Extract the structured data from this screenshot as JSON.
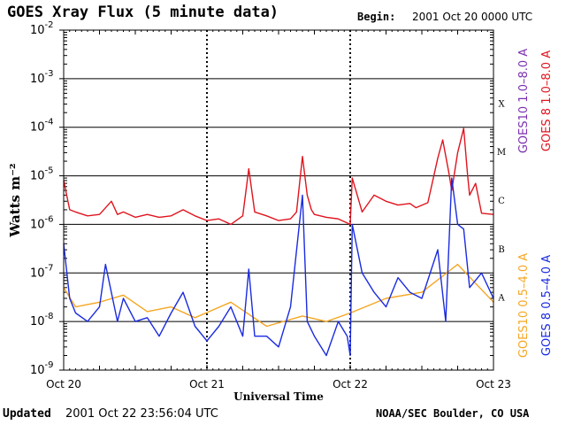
{
  "header": {
    "title": "GOES Xray Flux (5 minute data)",
    "begin_label": "Begin:",
    "begin_value": "2001 Oct 20 0000 UTC"
  },
  "footer": {
    "updated_label": "Updated",
    "updated_value": "2001 Oct 22 23:56:04 UTC",
    "credit": "NOAA/SEC Boulder, CO USA"
  },
  "chart_data": {
    "type": "line",
    "title": "GOES Xray Flux (5 minute data)",
    "xlabel": "Universal Time",
    "ylabel": "Watts m⁻²",
    "y_scale": "log",
    "ylim": [
      1e-09,
      0.01
    ],
    "xlim": [
      "2001-10-20 00:00",
      "2001-10-23 00:00"
    ],
    "x_ticks": [
      "Oct 20",
      "Oct 21",
      "Oct 22",
      "Oct 23"
    ],
    "y_ticks": [
      {
        "base": "10",
        "exp": "-9",
        "value": 1e-09
      },
      {
        "base": "10",
        "exp": "-8",
        "value": 1e-08
      },
      {
        "base": "10",
        "exp": "-7",
        "value": 1e-07
      },
      {
        "base": "10",
        "exp": "-6",
        "value": 1e-06
      },
      {
        "base": "10",
        "exp": "-5",
        "value": 1e-05
      },
      {
        "base": "10",
        "exp": "-4",
        "value": 0.0001
      },
      {
        "base": "10",
        "exp": "-3",
        "value": 0.001
      },
      {
        "base": "10",
        "exp": "-2",
        "value": 0.01
      }
    ],
    "flare_classes": [
      {
        "label": "X",
        "value": 0.000316
      },
      {
        "label": "M",
        "value": 3.16e-05
      },
      {
        "label": "C",
        "value": 3.16e-06
      },
      {
        "label": "B",
        "value": 3.16e-07
      },
      {
        "label": "A",
        "value": 3.16e-08
      }
    ],
    "grid": "horizontal decade lines with dotted day separators",
    "legend": [
      {
        "name": "GOES10 1.0–8.0 A",
        "color": "#7b2fb0"
      },
      {
        "name": "GOES 8 1.0–8.0 A",
        "color": "#e0141e"
      },
      {
        "name": "GOES10 0.5–4.0 A",
        "color": "#f5a623"
      },
      {
        "name": "GOES 8 0.5–4.0 A",
        "color": "#1a2be0"
      }
    ],
    "series": [
      {
        "name": "GOES 8 1.0–8.0 A",
        "color": "#e0141e",
        "x": [
          "2001-10-20 00:00",
          "2001-10-20 01:00",
          "2001-10-20 02:00",
          "2001-10-20 04:00",
          "2001-10-20 06:00",
          "2001-10-20 08:00",
          "2001-10-20 09:00",
          "2001-10-20 10:00",
          "2001-10-20 12:00",
          "2001-10-20 14:00",
          "2001-10-20 16:00",
          "2001-10-20 18:00",
          "2001-10-20 20:00",
          "2001-10-20 22:00",
          "2001-10-21 00:00",
          "2001-10-21 02:00",
          "2001-10-21 04:00",
          "2001-10-21 06:00",
          "2001-10-21 07:00",
          "2001-10-21 08:00",
          "2001-10-21 10:00",
          "2001-10-21 12:00",
          "2001-10-21 14:00",
          "2001-10-21 15:00",
          "2001-10-21 16:00",
          "2001-10-21 16:48",
          "2001-10-21 17:30",
          "2001-10-21 18:00",
          "2001-10-21 20:00",
          "2001-10-21 22:00",
          "2001-10-22 00:00",
          "2001-10-22 00:20",
          "2001-10-22 02:00",
          "2001-10-22 04:00",
          "2001-10-22 06:00",
          "2001-10-22 08:00",
          "2001-10-22 10:00",
          "2001-10-22 11:00",
          "2001-10-22 13:00",
          "2001-10-22 14:40",
          "2001-10-22 15:30",
          "2001-10-22 16:30",
          "2001-10-22 17:00",
          "2001-10-22 18:00",
          "2001-10-22 19:00",
          "2001-10-22 19:40",
          "2001-10-22 20:00",
          "2001-10-22 21:00",
          "2001-10-22 22:00",
          "2001-10-23 00:00"
        ],
        "values": [
          8e-06,
          2e-06,
          1.8e-06,
          1.5e-06,
          1.6e-06,
          3e-06,
          1.6e-06,
          1.8e-06,
          1.4e-06,
          1.6e-06,
          1.4e-06,
          1.5e-06,
          2e-06,
          1.5e-06,
          1.2e-06,
          1.3e-06,
          1e-06,
          1.5e-06,
          1.4e-05,
          1.8e-06,
          1.5e-06,
          1.2e-06,
          1.3e-06,
          1.8e-06,
          2.5e-05,
          4e-06,
          2e-06,
          1.6e-06,
          1.4e-06,
          1.3e-06,
          1e-06,
          9e-06,
          1.8e-06,
          4e-06,
          3e-06,
          2.5e-06,
          2.7e-06,
          2.2e-06,
          2.8e-06,
          2.3e-05,
          5.5e-05,
          1.2e-05,
          5e-06,
          3e-05,
          9.5e-05,
          1e-05,
          4e-06,
          7e-06,
          1.7e-06,
          1.6e-06
        ]
      },
      {
        "name": "GOES 8 0.5–4.0 A",
        "color": "#1a2be0",
        "x": [
          "2001-10-20 00:00",
          "2001-10-20 01:00",
          "2001-10-20 02:00",
          "2001-10-20 04:00",
          "2001-10-20 06:00",
          "2001-10-20 07:00",
          "2001-10-20 09:00",
          "2001-10-20 10:00",
          "2001-10-20 12:00",
          "2001-10-20 14:00",
          "2001-10-20 16:00",
          "2001-10-20 18:00",
          "2001-10-20 20:00",
          "2001-10-20 22:00",
          "2001-10-21 00:00",
          "2001-10-21 02:00",
          "2001-10-21 04:00",
          "2001-10-21 06:00",
          "2001-10-21 07:00",
          "2001-10-21 08:00",
          "2001-10-21 10:00",
          "2001-10-21 12:00",
          "2001-10-21 14:00",
          "2001-10-21 16:00",
          "2001-10-21 16:48",
          "2001-10-21 18:00",
          "2001-10-21 20:00",
          "2001-10-21 22:00",
          "2001-10-21 23:30",
          "2001-10-22 00:00",
          "2001-10-22 00:20",
          "2001-10-22 02:00",
          "2001-10-22 04:00",
          "2001-10-22 06:00",
          "2001-10-22 08:00",
          "2001-10-22 10:00",
          "2001-10-22 12:00",
          "2001-10-22 14:40",
          "2001-10-22 16:00",
          "2001-10-22 17:00",
          "2001-10-22 18:00",
          "2001-10-22 19:00",
          "2001-10-22 20:00",
          "2001-10-22 22:00",
          "2001-10-23 00:00"
        ],
        "values": [
          4e-07,
          3e-08,
          1.5e-08,
          1e-08,
          2e-08,
          1.5e-07,
          1e-08,
          3e-08,
          1e-08,
          1.2e-08,
          5e-09,
          1.5e-08,
          4e-08,
          8e-09,
          4e-09,
          8e-09,
          2e-08,
          5e-09,
          1.2e-07,
          5e-09,
          5e-09,
          3e-09,
          2e-08,
          4e-06,
          1e-08,
          5e-09,
          2e-09,
          1e-08,
          5e-09,
          2e-09,
          1e-06,
          1e-07,
          4e-08,
          2e-08,
          8e-08,
          4e-08,
          3e-08,
          3e-07,
          1e-08,
          9e-06,
          1e-06,
          8e-07,
          5e-08,
          1e-07,
          3e-08
        ]
      },
      {
        "name": "GOES10 0.5–4.0 A",
        "color": "#f5a623",
        "x": [
          "2001-10-20 00:00",
          "2001-10-20 02:00",
          "2001-10-20 06:00",
          "2001-10-20 10:00",
          "2001-10-20 14:00",
          "2001-10-20 18:00",
          "2001-10-20 22:00",
          "2001-10-21 04:00",
          "2001-10-21 10:00",
          "2001-10-21 16:00",
          "2001-10-21 20:00",
          "2001-10-22 00:00",
          "2001-10-22 06:00",
          "2001-10-22 12:00",
          "2001-10-22 18:00",
          "2001-10-23 00:00"
        ],
        "values": [
          5e-08,
          2e-08,
          2.5e-08,
          3.5e-08,
          1.6e-08,
          2e-08,
          1.2e-08,
          2.5e-08,
          8e-09,
          1.3e-08,
          1e-08,
          1.5e-08,
          3e-08,
          4e-08,
          1.5e-07,
          2.5e-08
        ]
      }
    ]
  }
}
